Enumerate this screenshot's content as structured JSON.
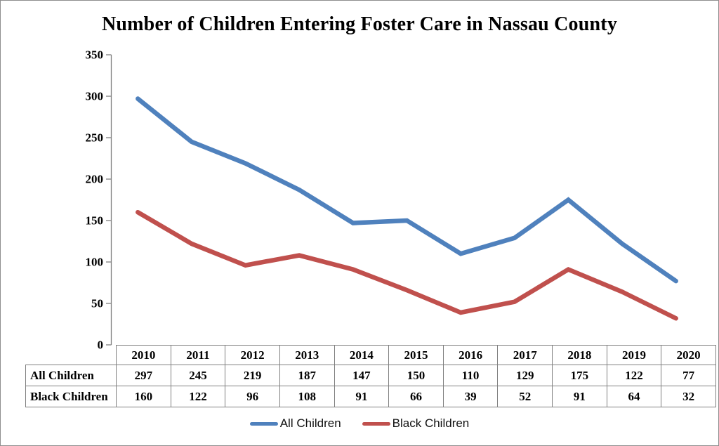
{
  "chart_data": {
    "type": "line",
    "title": "Number of Children Entering Foster Care in Nassau County",
    "categories": [
      "2010",
      "2011",
      "2012",
      "2013",
      "2014",
      "2015",
      "2016",
      "2017",
      "2018",
      "2019",
      "2020"
    ],
    "series": [
      {
        "name": "All Children",
        "color": "#4F81BD",
        "values": [
          297,
          245,
          219,
          187,
          147,
          150,
          110,
          129,
          175,
          122,
          77
        ]
      },
      {
        "name": "Black Children",
        "color": "#C0504D",
        "values": [
          160,
          122,
          96,
          108,
          91,
          66,
          39,
          52,
          91,
          64,
          32
        ]
      }
    ],
    "ylim": [
      0,
      350
    ],
    "ytick_step": 50,
    "ytick_labels": [
      "0",
      "50",
      "100",
      "150",
      "200",
      "250",
      "300",
      "350"
    ],
    "grid": false,
    "legend_position": "bottom",
    "axis_color": "#808080",
    "table_border_color": "#7f7f7f",
    "line_width": 6.5
  }
}
